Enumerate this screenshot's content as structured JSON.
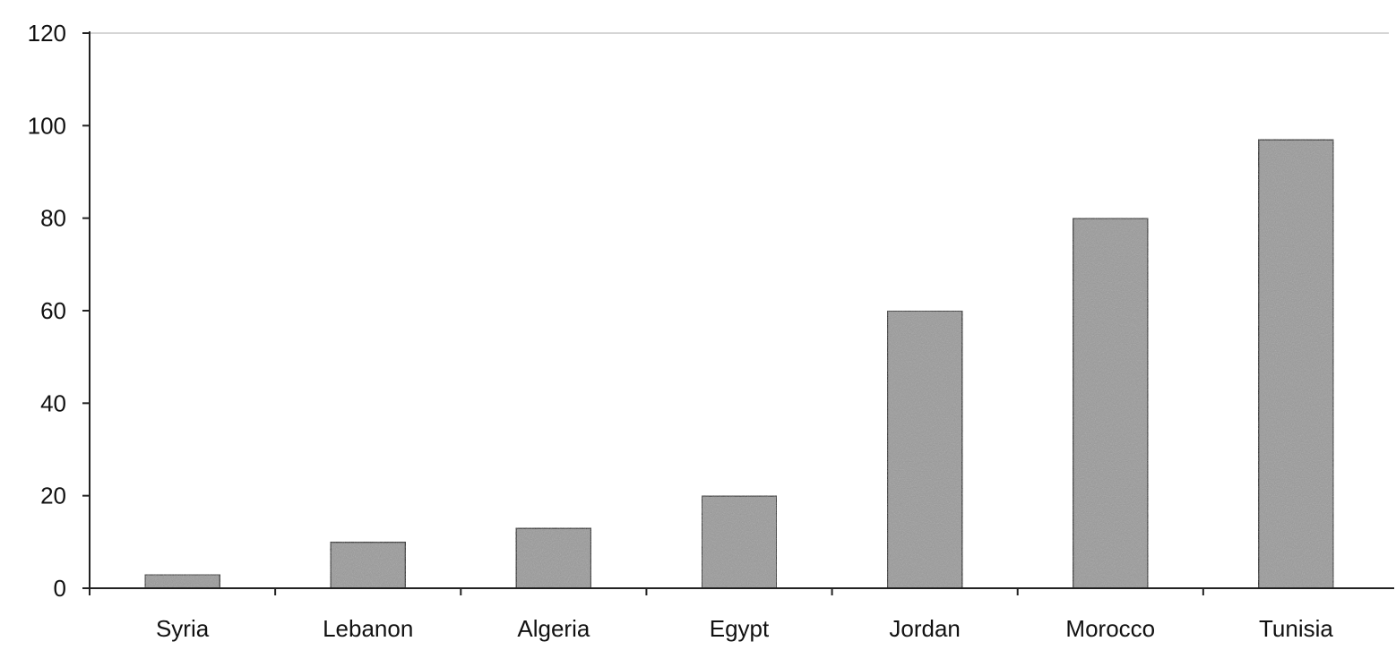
{
  "chart_data": {
    "type": "bar",
    "title": "",
    "xlabel": "",
    "ylabel": "",
    "categories": [
      "Syria",
      "Lebanon",
      "Algeria",
      "Egypt",
      "Jordan",
      "Morocco",
      "Tunisia"
    ],
    "values": [
      3,
      10,
      13,
      20,
      60,
      80,
      97
    ],
    "ylim": [
      0,
      120
    ],
    "yticks": [
      0,
      20,
      40,
      60,
      80,
      100,
      120
    ],
    "ytick_labels": [
      "0",
      "20",
      "40",
      "60",
      "80",
      "100",
      "120"
    ],
    "grid": false,
    "legend": "none",
    "colors": {
      "bar_fill": "#9a9a9a",
      "bar_stroke": "#111111",
      "axis": "#222222",
      "frame": "#444444"
    }
  }
}
